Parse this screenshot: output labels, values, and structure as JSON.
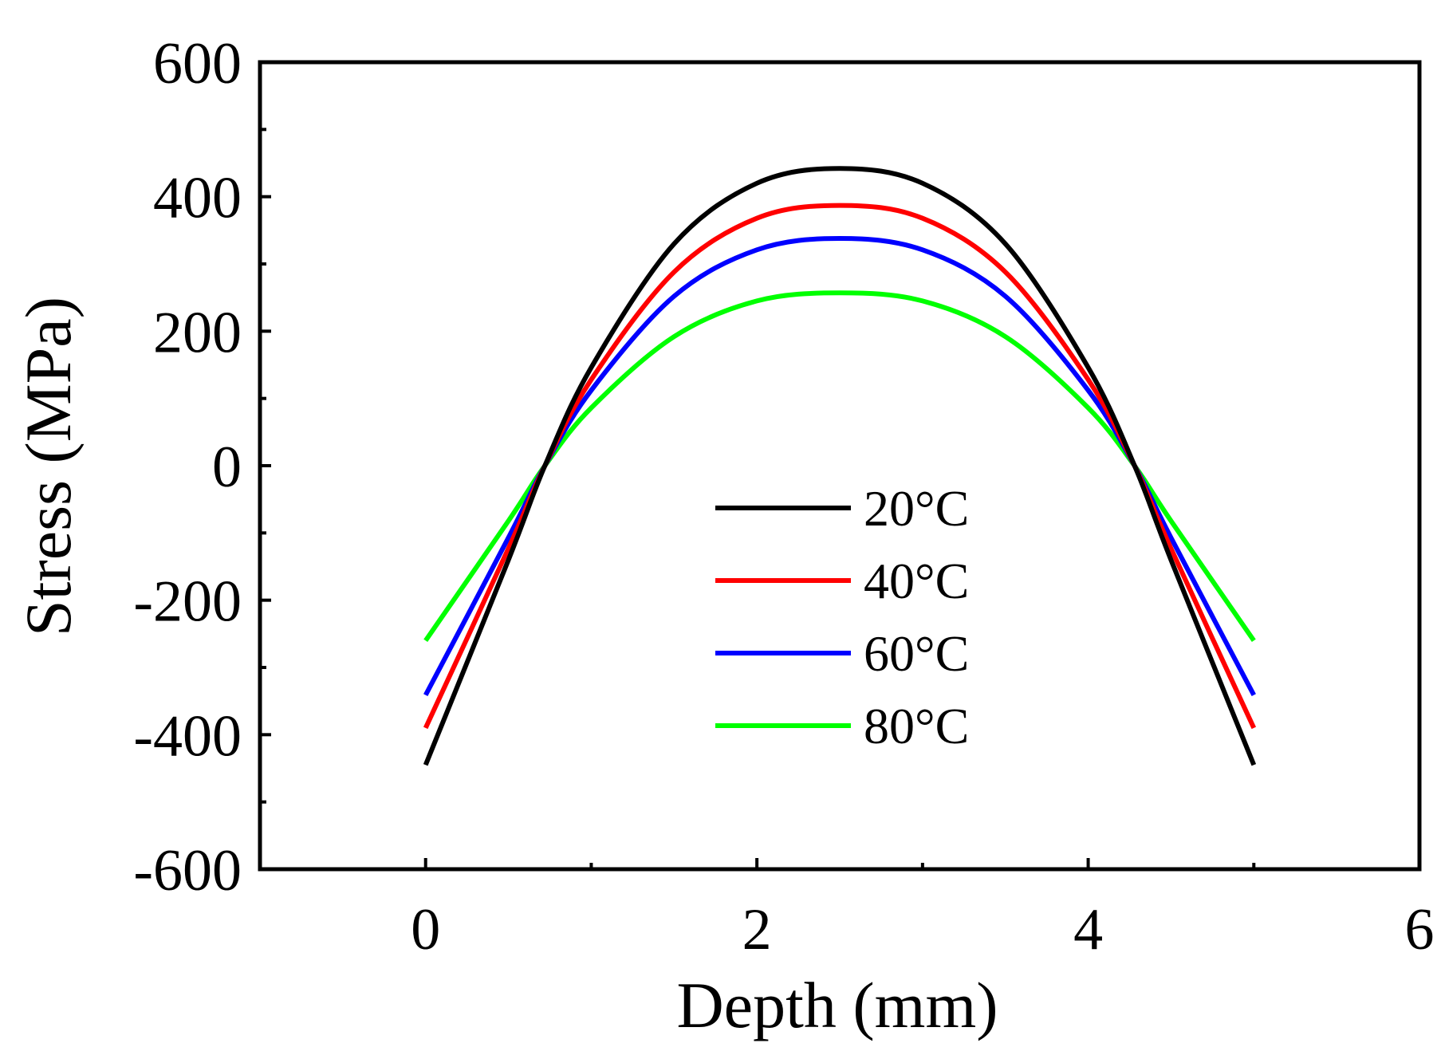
{
  "chart_data": {
    "type": "line",
    "title": "",
    "xlabel": "Depth (mm)",
    "ylabel": "Stress (MPa)",
    "xlim": [
      -1,
      6
    ],
    "ylim": [
      -600,
      600
    ],
    "xticks": [
      0,
      2,
      4,
      6
    ],
    "xtick_labels": [
      "0",
      "2",
      "4",
      "6"
    ],
    "yticks": [
      -600,
      -400,
      -200,
      0,
      200,
      400,
      600
    ],
    "ytick_labels": [
      "-600",
      "-400",
      "-200",
      "0",
      "200",
      "400",
      "600"
    ],
    "grid": false,
    "legend_position": "center",
    "series": [
      {
        "name": "20°C",
        "color": "#000000",
        "x": [
          0,
          0.5,
          0.72,
          1.0,
          1.5,
          2.0,
          2.5,
          3.0,
          3.5,
          4.0,
          4.28,
          4.5,
          5.0
        ],
        "y": [
          -445,
          -140,
          0,
          146,
          330,
          420,
          442,
          420,
          330,
          146,
          0,
          -140,
          -445
        ]
      },
      {
        "name": "40°C",
        "color": "#ff0000",
        "x": [
          0,
          0.5,
          0.72,
          1.0,
          1.5,
          2.0,
          2.5,
          3.0,
          3.5,
          4.0,
          4.28,
          4.5,
          5.0
        ],
        "y": [
          -390,
          -123,
          0,
          128,
          288,
          368,
          387,
          368,
          288,
          128,
          0,
          -123,
          -390
        ]
      },
      {
        "name": "60°C",
        "color": "#0000ff",
        "x": [
          0,
          0.5,
          0.72,
          1.0,
          1.5,
          2.0,
          2.5,
          3.0,
          3.5,
          4.0,
          4.28,
          4.5,
          5.0
        ],
        "y": [
          -341,
          -107,
          0,
          112,
          252,
          321,
          338,
          321,
          252,
          112,
          0,
          -107,
          -341
        ]
      },
      {
        "name": "80°C",
        "color": "#00ff00",
        "x": [
          0,
          0.5,
          0.72,
          1.0,
          1.5,
          2.0,
          2.5,
          3.0,
          3.5,
          4.0,
          4.28,
          4.5,
          5.0
        ],
        "y": [
          -260,
          -82,
          0,
          86,
          192,
          245,
          257,
          245,
          192,
          86,
          0,
          -82,
          -260
        ]
      }
    ]
  }
}
